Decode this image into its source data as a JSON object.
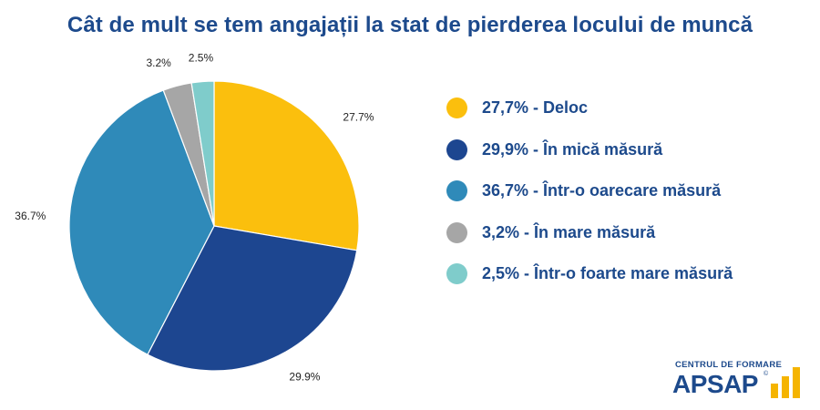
{
  "chart_data": {
    "type": "pie",
    "title": "Cât de mult se tem angajații la stat de pierderea locului de muncă",
    "slices": [
      {
        "name": "Deloc",
        "value": 27.7,
        "label": "27.7%",
        "legend": "27,7% - Deloc",
        "color": "#fbbf0d"
      },
      {
        "name": "În mică măsură",
        "value": 29.9,
        "label": "29.9%",
        "legend": "29,9% - În mică măsură",
        "color": "#1d4690"
      },
      {
        "name": "Într-o oarecare măsură",
        "value": 36.7,
        "label": "36.7%",
        "legend": "36,7% - Într-o oarecare măsură",
        "color": "#2f8ab9"
      },
      {
        "name": "În mare măsură",
        "value": 3.2,
        "label": "3.2%",
        "legend": "3,2% - În mare măsură",
        "color": "#a6a6a6"
      },
      {
        "name": "Într-o foarte mare măsură",
        "value": 2.5,
        "label": "2.5%",
        "legend": "2,5% - Într-o foarte mare măsură",
        "color": "#7fcccb"
      }
    ],
    "legend_position": "right"
  },
  "logo": {
    "top_text": "CENTRUL DE FORMARE",
    "main_text": "APSAP",
    "registered": "©",
    "accent_color": "#f5b400"
  }
}
